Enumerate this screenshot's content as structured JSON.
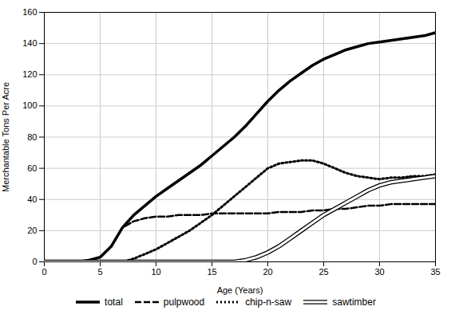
{
  "chart_data": {
    "type": "line",
    "xlabel": "Age (Years)",
    "ylabel": "Merchantable Tons Per Acre",
    "x": [
      0,
      1,
      2,
      3,
      4,
      5,
      6,
      7,
      8,
      9,
      10,
      11,
      12,
      13,
      14,
      15,
      16,
      17,
      18,
      19,
      20,
      21,
      22,
      23,
      24,
      25,
      26,
      27,
      28,
      29,
      30,
      31,
      32,
      33,
      34,
      35
    ],
    "series": [
      {
        "name": "total",
        "color": "#000000",
        "line_style": "solid",
        "values": [
          0,
          0,
          0,
          0,
          1,
          3,
          10,
          22,
          30,
          36,
          42,
          47,
          52,
          57,
          62,
          68,
          74,
          80,
          87,
          95,
          103,
          110,
          116,
          121,
          126,
          130,
          133,
          136,
          138,
          140,
          141,
          142,
          143,
          144,
          145,
          147
        ]
      },
      {
        "name": "pulpwood",
        "color": "#000000",
        "line_style": "dashed",
        "values": [
          0,
          0,
          0,
          0,
          1,
          3,
          10,
          22,
          26,
          28,
          29,
          29,
          30,
          30,
          30,
          31,
          31,
          31,
          31,
          31,
          31,
          32,
          32,
          32,
          33,
          33,
          34,
          34,
          35,
          36,
          36,
          37,
          37,
          37,
          37,
          37
        ]
      },
      {
        "name": "chip-n-saw",
        "color": "#000000",
        "line_style": "dotted",
        "values": [
          0,
          0,
          0,
          0,
          0,
          0,
          0,
          0,
          2,
          5,
          8,
          12,
          16,
          20,
          25,
          30,
          36,
          42,
          48,
          54,
          60,
          63,
          64,
          65,
          65,
          63,
          60,
          57,
          55,
          54,
          53,
          54,
          54,
          55,
          55,
          56
        ]
      },
      {
        "name": "sawtimber",
        "color": "#000000",
        "line_style": "double",
        "values": [
          0,
          0,
          0,
          0,
          0,
          0,
          0,
          0,
          0,
          0,
          0,
          0,
          0,
          0,
          0,
          0,
          0,
          0,
          1,
          3,
          6,
          10,
          15,
          20,
          25,
          30,
          34,
          38,
          42,
          46,
          49,
          51,
          52,
          53,
          54,
          55
        ]
      }
    ],
    "xlim": [
      0,
      35
    ],
    "ylim": [
      0,
      160
    ],
    "xticks": [
      0,
      5,
      10,
      15,
      20,
      25,
      30,
      35
    ],
    "yticks": [
      0,
      20,
      40,
      60,
      80,
      100,
      120,
      140,
      160
    ],
    "grid": true,
    "legend": "bottom"
  }
}
